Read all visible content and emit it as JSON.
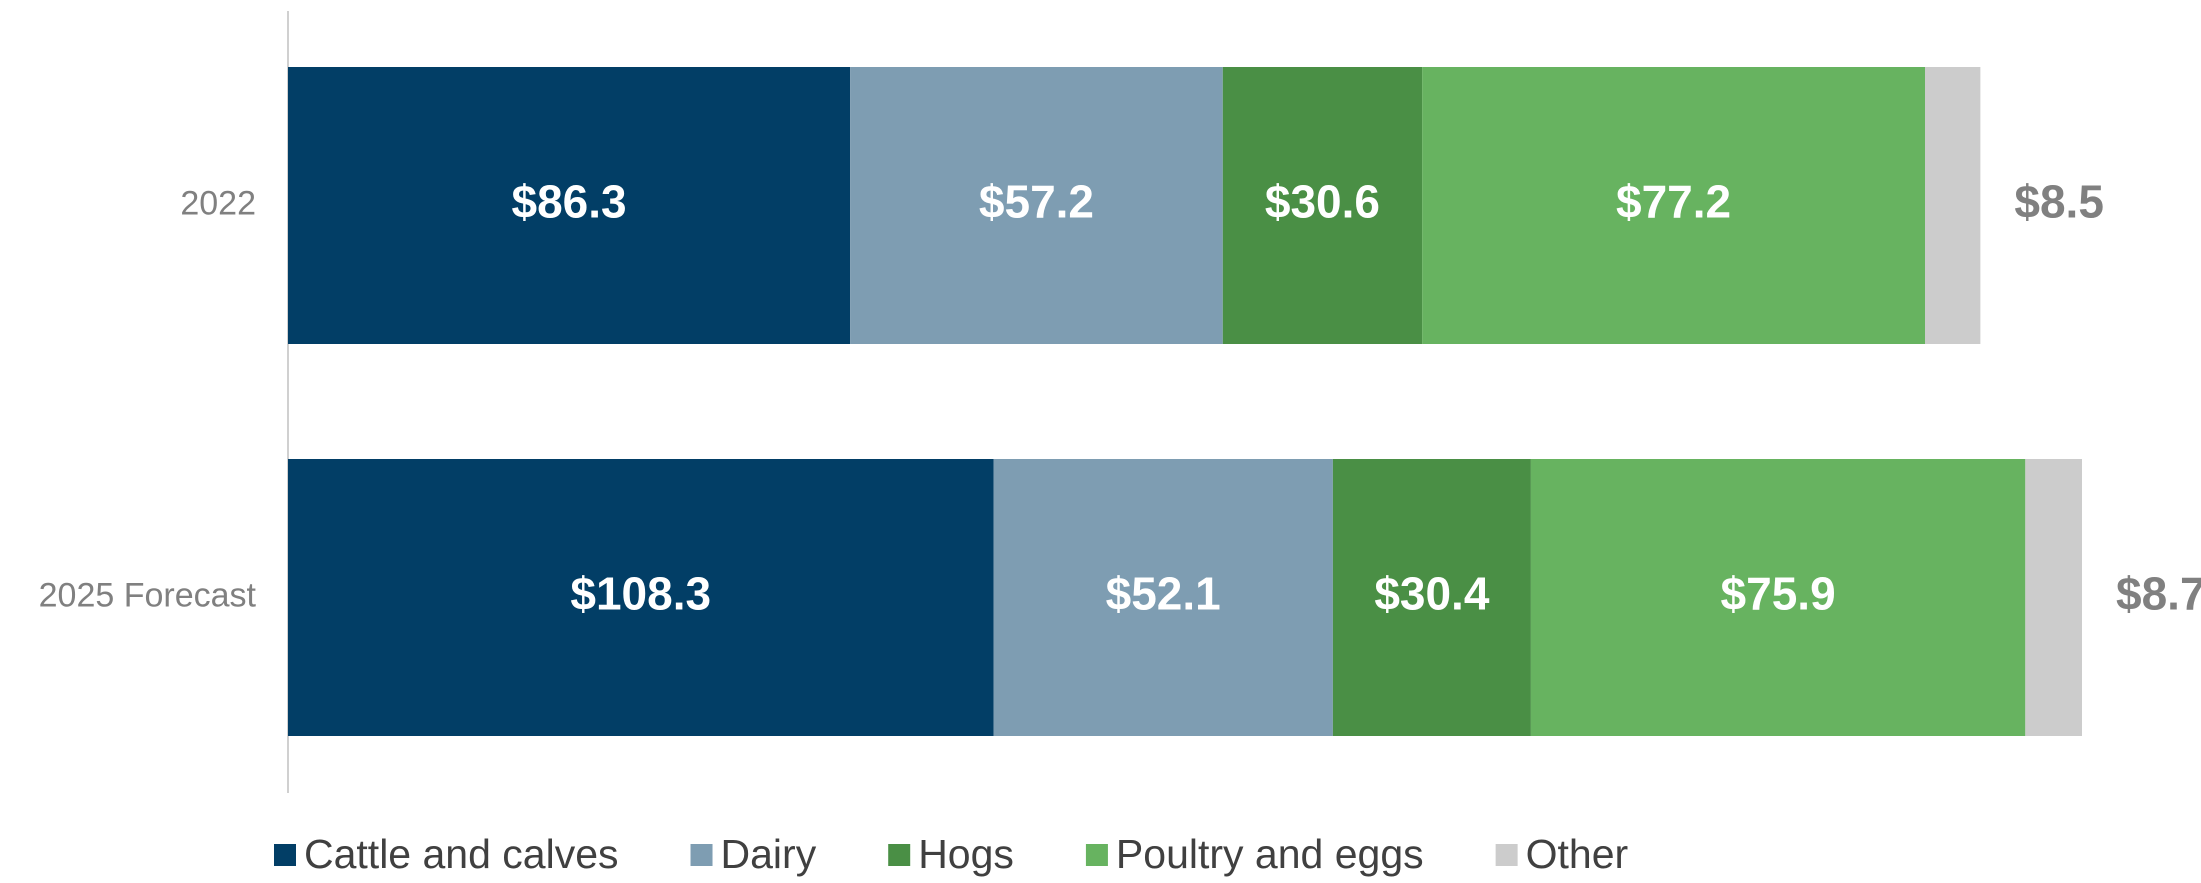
{
  "chart_data": {
    "type": "stacked-barh",
    "categories": [
      "2022",
      "2025 Forecast"
    ],
    "series": [
      {
        "name": "Cattle and calves",
        "color": "#023e66",
        "values": [
          86.3,
          108.3
        ],
        "value_labels": [
          "$86.3",
          "$108.3"
        ]
      },
      {
        "name": "Dairy",
        "color": "#7e9db2",
        "values": [
          57.2,
          52.1
        ],
        "value_labels": [
          "$57.2",
          "$52.1"
        ]
      },
      {
        "name": "Hogs",
        "color": "#4a8f45",
        "values": [
          30.6,
          30.4
        ],
        "value_labels": [
          "$30.6",
          "$30.4"
        ]
      },
      {
        "name": "Poultry and eggs",
        "color": "#67b360",
        "values": [
          77.2,
          75.9
        ],
        "value_labels": [
          "$77.2",
          "$75.9"
        ]
      },
      {
        "name": "Other",
        "color": "#cccccc",
        "values": [
          8.5,
          8.7
        ],
        "value_labels": [
          "$8.5",
          "$8.7"
        ]
      }
    ],
    "legend": "bottom"
  }
}
